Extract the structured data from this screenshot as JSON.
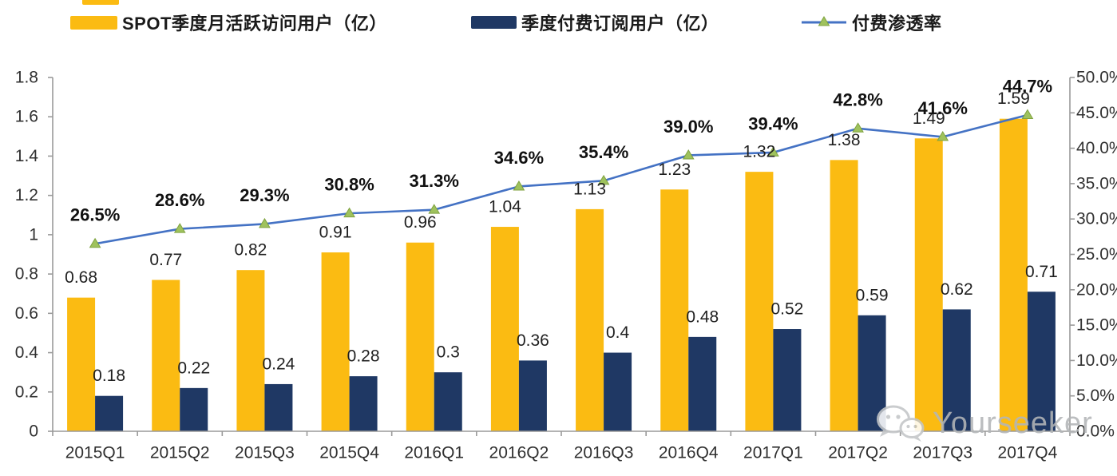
{
  "legend": {
    "items": [
      {
        "label": "SPOT季度月活跃访问用户（亿）",
        "swatch": "bar",
        "color": "#FBBB12"
      },
      {
        "label": "季度付费订阅用户（亿）",
        "swatch": "bar",
        "color": "#1F3864"
      },
      {
        "label": "付费渗透率",
        "swatch": "line-triangle",
        "color": "#4472C4",
        "marker_color": "#9FC25D",
        "marker_edge_color": "#7FA23F"
      }
    ]
  },
  "chart_data": {
    "type": "combo-bar-line",
    "categories": [
      "2015Q1",
      "2015Q2",
      "2015Q3",
      "2015Q4",
      "2016Q1",
      "2016Q2",
      "2016Q3",
      "2016Q4",
      "2017Q1",
      "2017Q2",
      "2017Q3",
      "2017Q4"
    ],
    "series": [
      {
        "name": "SPOT季度月活跃访问用户（亿）",
        "type": "bar",
        "axis": "left",
        "color": "#FBBB12",
        "values": [
          0.68,
          0.77,
          0.82,
          0.91,
          0.96,
          1.04,
          1.13,
          1.23,
          1.32,
          1.38,
          1.49,
          1.59
        ],
        "labels": [
          "0.68",
          "0.77",
          "0.82",
          "0.91",
          "0.96",
          "1.04",
          "1.13",
          "1.23",
          "1.32",
          "1.38",
          "1.49",
          "1.59"
        ]
      },
      {
        "name": "季度付费订阅用户（亿）",
        "type": "bar",
        "axis": "left",
        "color": "#1F3864",
        "values": [
          0.18,
          0.22,
          0.24,
          0.28,
          0.3,
          0.36,
          0.4,
          0.48,
          0.52,
          0.59,
          0.62,
          0.71
        ],
        "labels": [
          "0.18",
          "0.22",
          "0.24",
          "0.28",
          "0.3",
          "0.36",
          "0.4",
          "0.48",
          "0.52",
          "0.59",
          "0.62",
          "0.71"
        ]
      },
      {
        "name": "付费渗透率",
        "type": "line",
        "axis": "right",
        "color": "#4472C4",
        "marker": "triangle",
        "marker_color": "#9FC25D",
        "marker_edge_color": "#7FA23F",
        "values": [
          26.5,
          28.6,
          29.3,
          30.8,
          31.3,
          34.6,
          35.4,
          39.0,
          39.4,
          42.8,
          41.6,
          44.7
        ],
        "labels": [
          "26.5%",
          "28.6%",
          "29.3%",
          "30.8%",
          "31.3%",
          "34.6%",
          "35.4%",
          "39.0%",
          "39.4%",
          "42.8%",
          "41.6%",
          "44.7%"
        ]
      }
    ],
    "left_axis": {
      "min": 0,
      "max": 1.8,
      "step": 0.2,
      "tick_labels": [
        "0",
        "0.2",
        "0.4",
        "0.6",
        "0.8",
        "1",
        "1.2",
        "1.4",
        "1.6",
        "1.8"
      ]
    },
    "right_axis": {
      "min": 0,
      "max": 50,
      "step": 5,
      "tick_labels": [
        "0.0%",
        "5.0%",
        "10.0%",
        "15.0%",
        "20.0%",
        "25.0%",
        "30.0%",
        "35.0%",
        "40.0%",
        "45.0%",
        "50.0%"
      ]
    },
    "grid": false,
    "legend_position": "top",
    "axis_color": "#9a9a9a"
  },
  "watermark": {
    "text": "Yourseeker",
    "icon": "wechat-icon"
  }
}
